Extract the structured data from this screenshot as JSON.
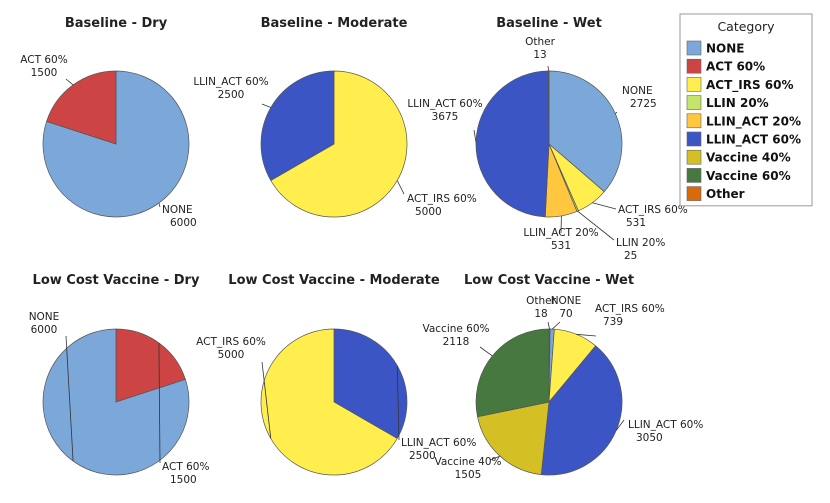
{
  "chart_data": {
    "type": "pie",
    "legend": {
      "title": "Category",
      "position": "top-right",
      "entries": [
        {
          "name": "NONE",
          "color": "#7BA7D9"
        },
        {
          "name": "ACT 60%",
          "color": "#CC4444"
        },
        {
          "name": "ACT_IRS 60%",
          "color": "#FFEE4D"
        },
        {
          "name": "LLIN 20%",
          "color": "#C6E46A"
        },
        {
          "name": "LLIN_ACT 20%",
          "color": "#FFC640"
        },
        {
          "name": "LLIN_ACT 60%",
          "color": "#3C55C4"
        },
        {
          "name": "Vaccine 40%",
          "color": "#D4C025"
        },
        {
          "name": "Vaccine 60%",
          "color": "#47783F"
        },
        {
          "name": "Other",
          "color": "#D96A0A"
        }
      ]
    },
    "pies": [
      {
        "title": "Baseline - Dry",
        "slices": [
          {
            "category": "NONE",
            "value": 6000,
            "label": "NONE",
            "value_label": "6000"
          },
          {
            "category": "ACT 60%",
            "value": 1500,
            "label": "ACT 60%",
            "value_label": "1500"
          }
        ]
      },
      {
        "title": "Baseline - Moderate",
        "slices": [
          {
            "category": "ACT_IRS 60%",
            "value": 5000,
            "label": "ACT_IRS 60%",
            "value_label": "5000"
          },
          {
            "category": "LLIN_ACT 60%",
            "value": 2500,
            "label": "LLIN_ACT 60%",
            "value_label": "2500"
          }
        ]
      },
      {
        "title": "Baseline - Wet",
        "slices": [
          {
            "category": "NONE",
            "value": 2725,
            "label": "NONE",
            "value_label": "2725"
          },
          {
            "category": "ACT_IRS 60%",
            "value": 531,
            "label": "ACT_IRS 60%",
            "value_label": "531"
          },
          {
            "category": "LLIN 20%",
            "value": 25,
            "label": "LLIN 20%",
            "value_label": "25"
          },
          {
            "category": "LLIN_ACT 20%",
            "value": 531,
            "label": "LLIN_ACT 20%",
            "value_label": "531"
          },
          {
            "category": "LLIN_ACT 60%",
            "value": 3675,
            "label": "LLIN_ACT 60%",
            "value_label": "3675"
          },
          {
            "category": "Other",
            "value": 13,
            "label": "Other",
            "value_label": "13"
          }
        ]
      },
      {
        "title": "Low Cost Vaccine - Dry",
        "slices": [
          {
            "category": "NONE",
            "value": 6000,
            "label": "NONE",
            "value_label": "6000"
          },
          {
            "category": "ACT 60%",
            "value": 1500,
            "label": "ACT 60%",
            "value_label": "1500"
          }
        ]
      },
      {
        "title": "Low Cost Vaccine - Moderate",
        "slices": [
          {
            "category": "ACT_IRS 60%",
            "value": 5000,
            "label": "ACT_IRS 60%",
            "value_label": "5000"
          },
          {
            "category": "LLIN_ACT 60%",
            "value": 2500,
            "label": "LLIN_ACT 60%",
            "value_label": "2500"
          }
        ]
      },
      {
        "title": "Low Cost Vaccine - Wet",
        "slices": [
          {
            "category": "NONE",
            "value": 70,
            "label": "NONE",
            "value_label": "70"
          },
          {
            "category": "ACT_IRS 60%",
            "value": 739,
            "label": "ACT_IRS 60%",
            "value_label": "739"
          },
          {
            "category": "LLIN_ACT 60%",
            "value": 3050,
            "label": "LLIN_ACT 60%",
            "value_label": "3050"
          },
          {
            "category": "Vaccine 40%",
            "value": 1505,
            "label": "Vaccine 40%",
            "value_label": "1505"
          },
          {
            "category": "Vaccine 60%",
            "value": 2118,
            "label": "Vaccine 60%",
            "value_label": "2118"
          },
          {
            "category": "Other",
            "value": 18,
            "label": "Other",
            "value_label": "18"
          }
        ]
      }
    ]
  }
}
